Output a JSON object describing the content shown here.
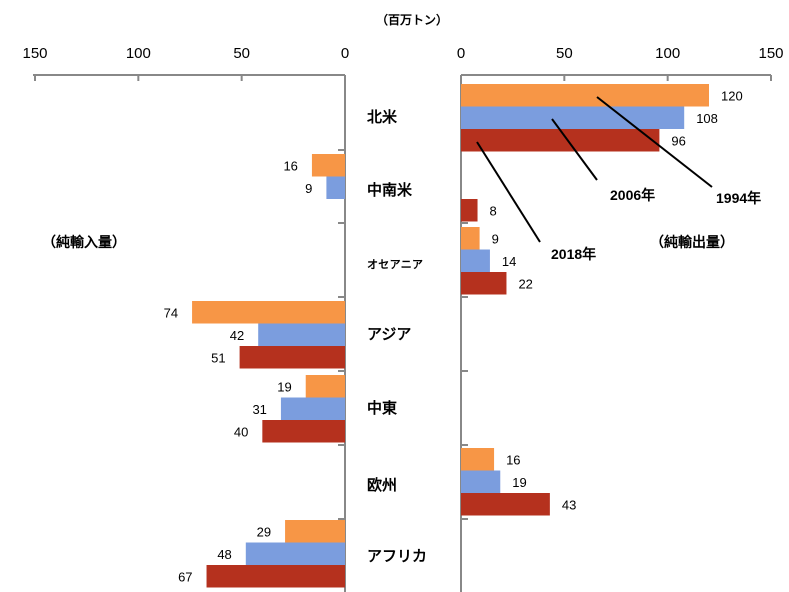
{
  "chart_data": {
    "type": "bar",
    "orientation": "horizontal-butterfly",
    "unit": "（百万トン）",
    "left_label": "（純輸入量）",
    "right_label": "（純輸出量）",
    "left_ticks": [
      "150",
      "100",
      "50",
      "0"
    ],
    "right_ticks": [
      "0",
      "50",
      "100",
      "150"
    ],
    "xlim": [
      0,
      150
    ],
    "regions": [
      "北米",
      "中南米",
      "オセアニア",
      "アジア",
      "中東",
      "欧州",
      "アフリカ"
    ],
    "series": [
      {
        "name": "1994年",
        "color": "#F79646"
      },
      {
        "name": "2006年",
        "color": "#7B9DDE"
      },
      {
        "name": "2018年",
        "color": "#B5311E"
      }
    ],
    "bars": [
      {
        "region_index": 0,
        "series_index": 0,
        "side": "export",
        "value": 120,
        "label": "120"
      },
      {
        "region_index": 0,
        "series_index": 1,
        "side": "export",
        "value": 108,
        "label": "108"
      },
      {
        "region_index": 0,
        "series_index": 2,
        "side": "export",
        "value": 96,
        "label": "96"
      },
      {
        "region_index": 1,
        "series_index": 0,
        "side": "import",
        "value": 16,
        "label": "16"
      },
      {
        "region_index": 1,
        "series_index": 1,
        "side": "import",
        "value": 9,
        "label": "9"
      },
      {
        "region_index": 1,
        "series_index": 2,
        "side": "export",
        "value": 8,
        "label": "8"
      },
      {
        "region_index": 2,
        "series_index": 0,
        "side": "export",
        "value": 9,
        "label": "9"
      },
      {
        "region_index": 2,
        "series_index": 1,
        "side": "export",
        "value": 14,
        "label": "14"
      },
      {
        "region_index": 2,
        "series_index": 2,
        "side": "export",
        "value": 22,
        "label": "22"
      },
      {
        "region_index": 3,
        "series_index": 0,
        "side": "import",
        "value": 74,
        "label": "74"
      },
      {
        "region_index": 3,
        "series_index": 1,
        "side": "import",
        "value": 42,
        "label": "42"
      },
      {
        "region_index": 3,
        "series_index": 2,
        "side": "import",
        "value": 51,
        "label": "51"
      },
      {
        "region_index": 4,
        "series_index": 0,
        "side": "import",
        "value": 19,
        "label": "19"
      },
      {
        "region_index": 4,
        "series_index": 1,
        "side": "import",
        "value": 31,
        "label": "31"
      },
      {
        "region_index": 4,
        "series_index": 2,
        "side": "import",
        "value": 40,
        "label": "40"
      },
      {
        "region_index": 5,
        "series_index": 0,
        "side": "export",
        "value": 16,
        "label": "16"
      },
      {
        "region_index": 5,
        "series_index": 1,
        "side": "export",
        "value": 19,
        "label": "19"
      },
      {
        "region_index": 5,
        "series_index": 2,
        "side": "export",
        "value": 43,
        "label": "43"
      },
      {
        "region_index": 6,
        "series_index": 0,
        "side": "import",
        "value": 29,
        "label": "29"
      },
      {
        "region_index": 6,
        "series_index": 1,
        "side": "import",
        "value": 48,
        "label": "48"
      },
      {
        "region_index": 6,
        "series_index": 2,
        "side": "import",
        "value": 67,
        "label": "67"
      }
    ]
  }
}
